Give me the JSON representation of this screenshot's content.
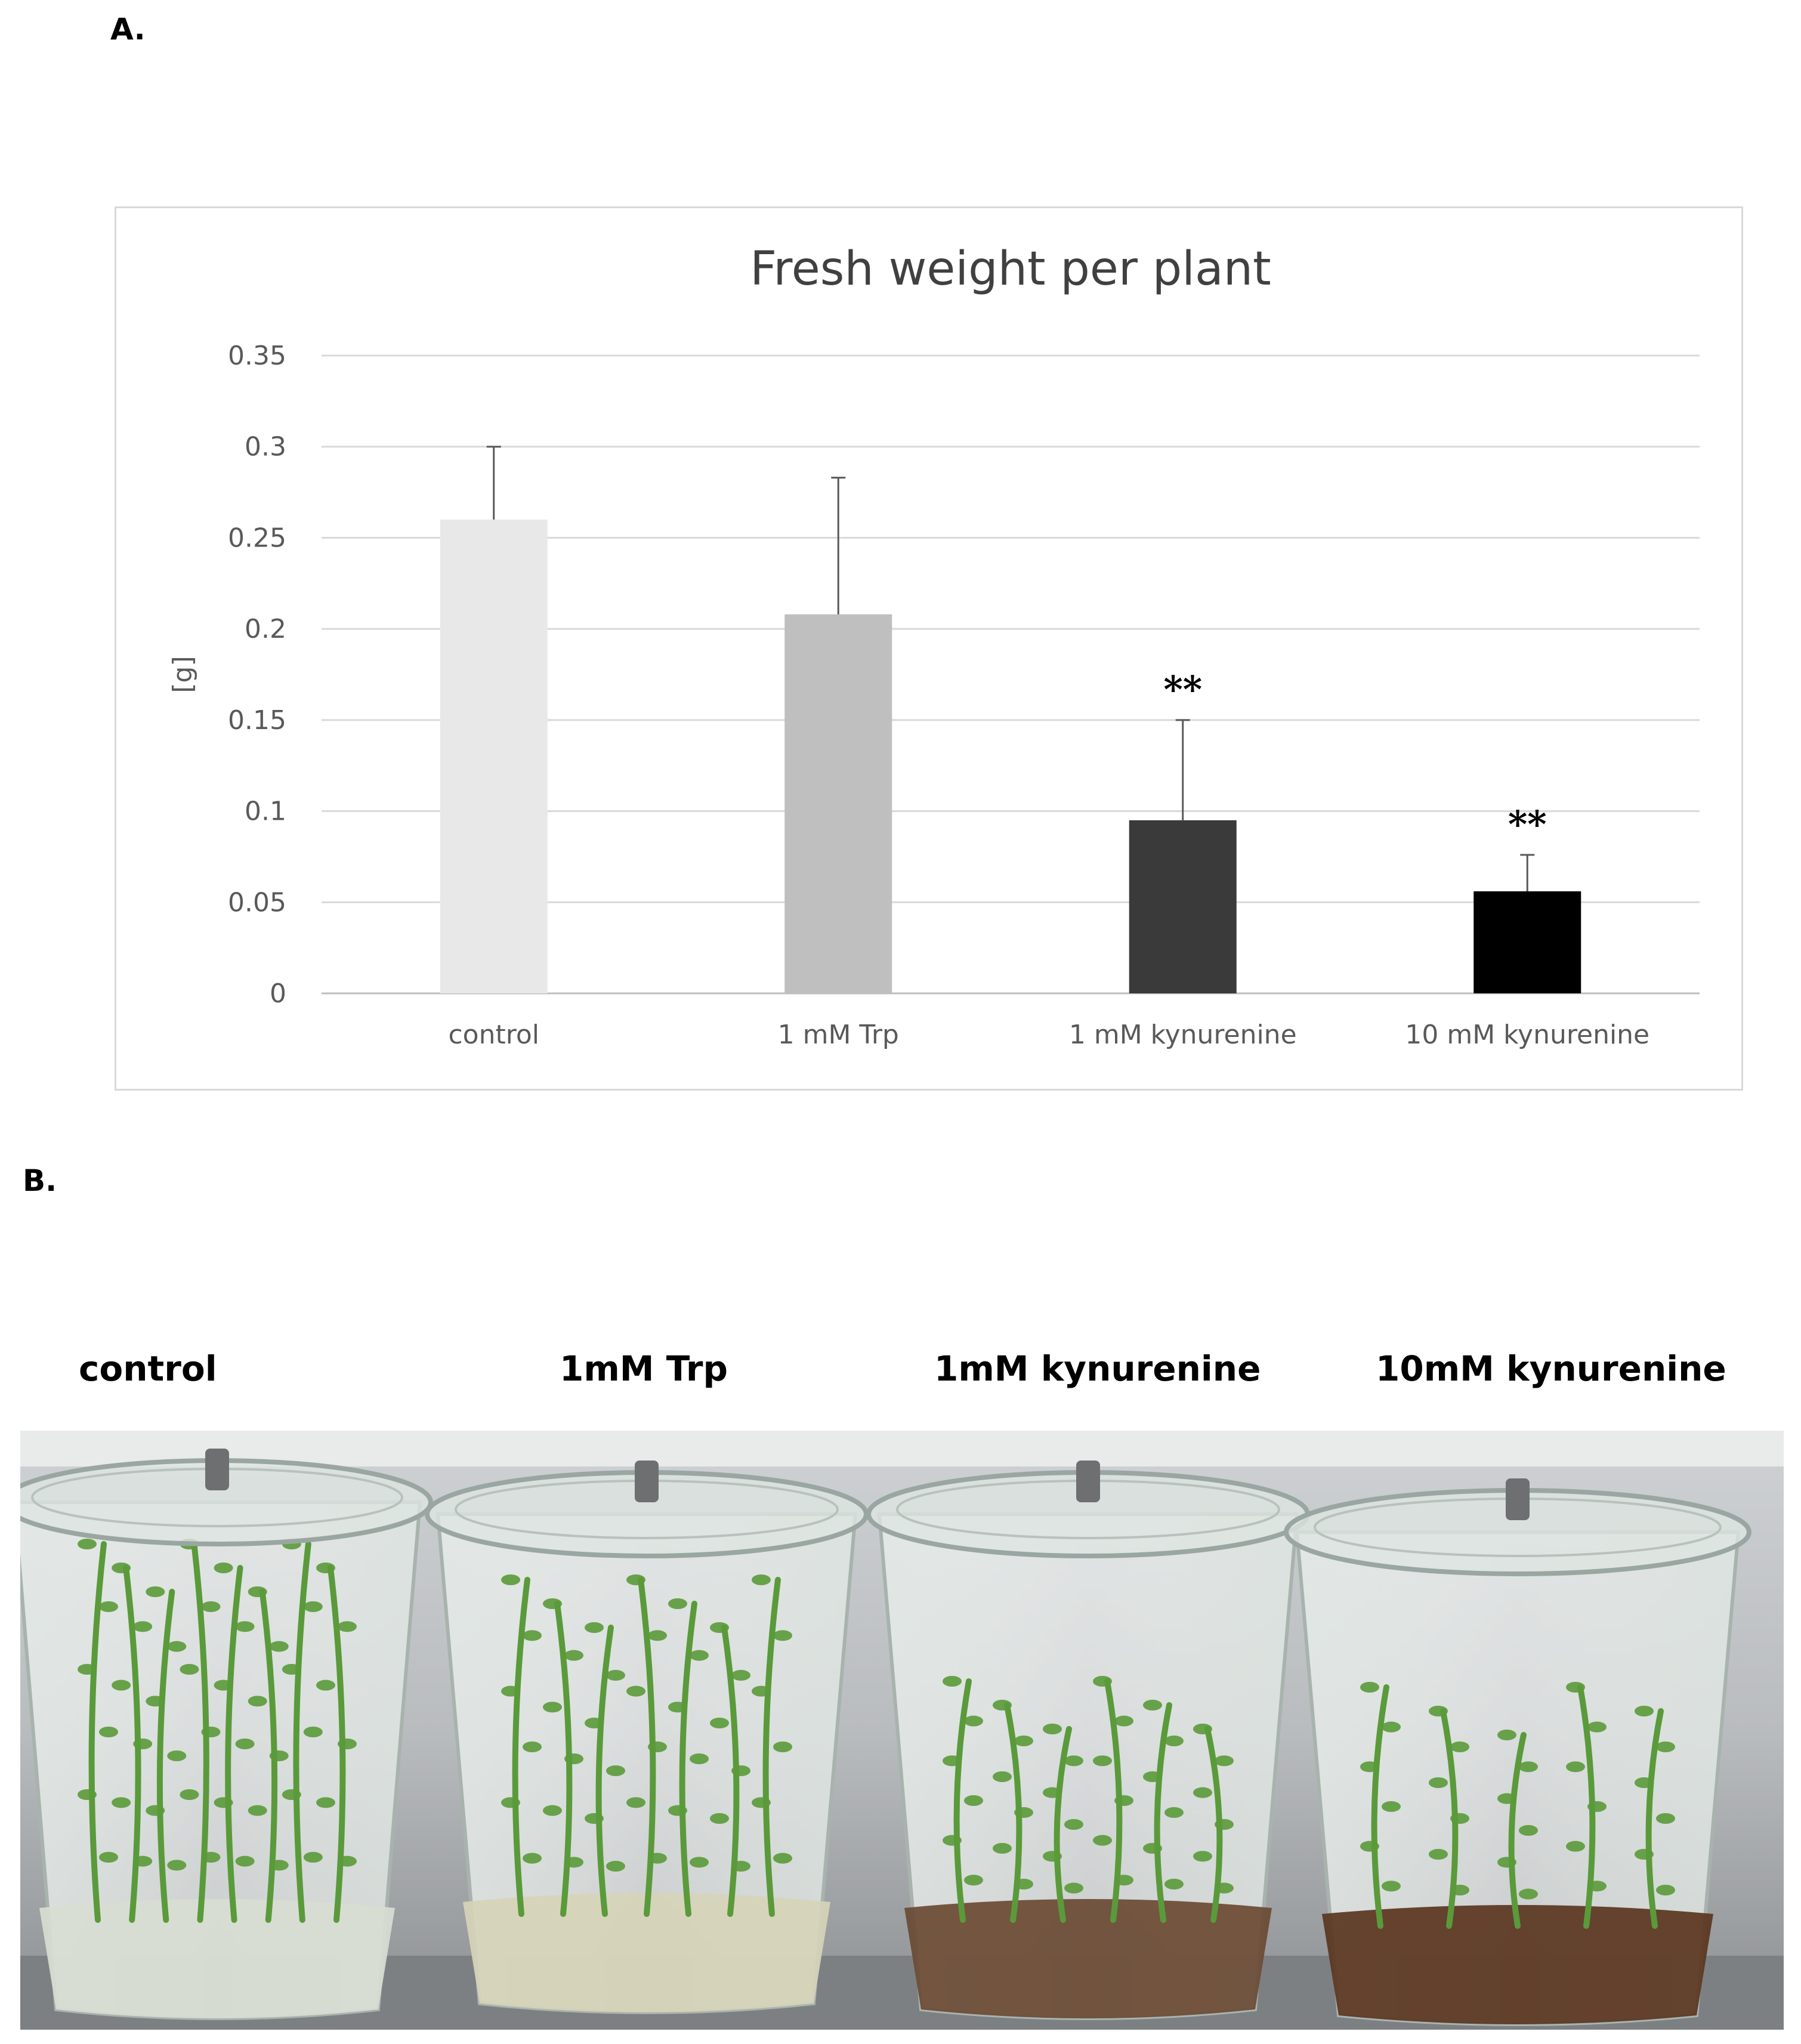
{
  "panels": {
    "a_label": "A.",
    "b_label": "B."
  },
  "chart_data": {
    "type": "bar",
    "title": "Fresh weight per plant",
    "ylabel": "[g]",
    "xlabel": "",
    "categories": [
      "control",
      "1 mM Trp",
      "1 mM kynurenine",
      "10 mM kynurenine"
    ],
    "values": [
      0.26,
      0.208,
      0.095,
      0.056
    ],
    "errors": [
      0.04,
      0.075,
      0.055,
      0.02
    ],
    "significance": [
      "",
      "",
      "**",
      "**"
    ],
    "bar_colors": [
      "#e8e8e8",
      "#bfbfbf",
      "#3a3a3a",
      "#000000"
    ],
    "ylim": [
      0,
      0.35
    ],
    "yticks": [
      0,
      0.05,
      0.1,
      0.15,
      0.2,
      0.25,
      0.3,
      0.35
    ],
    "ytick_labels": [
      "0",
      "0.05",
      "0.1",
      "0.15",
      "0.2",
      "0.25",
      "0.3",
      "0.35"
    ],
    "grid": true,
    "legend": "none"
  },
  "photo": {
    "labels": [
      "control",
      "1mM Trp",
      "1mM kynurenine",
      "10mM kynurenine"
    ],
    "jar_medium_colors": [
      "#d8ddd2",
      "#d6d4b8",
      "#6a4a33",
      "#5a3520"
    ],
    "plant_color": "#5a9a3a"
  }
}
